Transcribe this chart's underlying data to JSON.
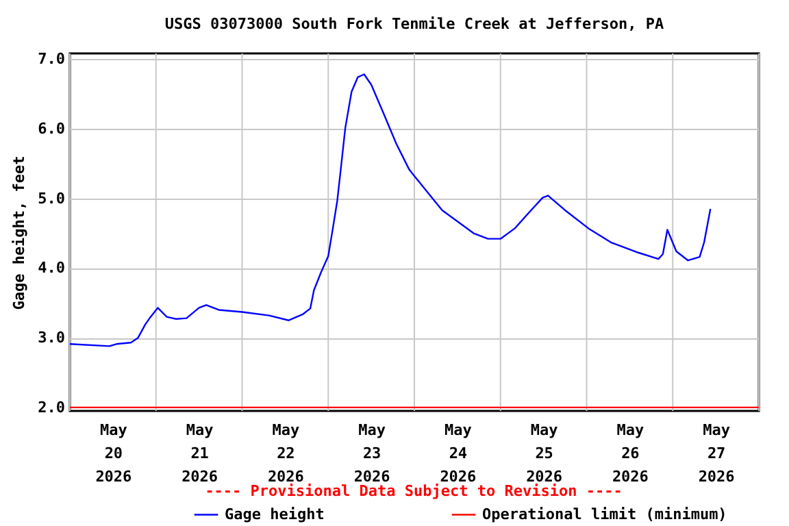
{
  "chart_data": {
    "type": "line",
    "title": "USGS 03073000 South Fork Tenmile Creek at Jefferson, PA",
    "ylabel": "Gage height, feet",
    "annotations": [
      "---- Provisional Data Subject to Revision ----"
    ],
    "x": [
      "2026-05-20T00:00",
      "2026-05-20T11:00",
      "2026-05-20T13:00",
      "2026-05-20T17:00",
      "2026-05-20T19:00",
      "2026-05-20T21:00",
      "2026-05-20T22:30",
      "2026-05-21T00:30",
      "2026-05-21T03:00",
      "2026-05-21T05:30",
      "2026-05-21T08:30",
      "2026-05-21T12:00",
      "2026-05-21T14:00",
      "2026-05-21T17:30",
      "2026-05-22T00:00",
      "2026-05-22T07:30",
      "2026-05-22T13:00",
      "2026-05-22T17:00",
      "2026-05-22T19:00",
      "2026-05-22T20:00",
      "2026-05-22T22:00",
      "2026-05-23T00:00",
      "2026-05-23T01:15",
      "2026-05-23T02:30",
      "2026-05-23T03:30",
      "2026-05-23T04:45",
      "2026-05-23T06:30",
      "2026-05-23T08:15",
      "2026-05-23T10:00",
      "2026-05-23T12:00",
      "2026-05-23T15:15",
      "2026-05-23T19:00",
      "2026-05-23T22:30",
      "2026-05-24T00:00",
      "2026-05-24T07:45",
      "2026-05-24T16:30",
      "2026-05-24T20:30",
      "2026-05-25T00:00",
      "2026-05-25T04:00",
      "2026-05-25T08:00",
      "2026-05-25T11:45",
      "2026-05-25T13:15",
      "2026-05-25T18:00",
      "2026-05-26T00:30",
      "2026-05-26T06:45",
      "2026-05-26T14:30",
      "2026-05-26T20:00",
      "2026-05-26T21:15",
      "2026-05-26T22:30",
      "2026-05-27T01:00",
      "2026-05-27T04:15",
      "2026-05-27T07:30",
      "2026-05-27T08:45",
      "2026-05-27T10:30"
    ],
    "series": [
      {
        "name": "Gage height",
        "color": "#0000ff",
        "values": [
          2.91,
          2.88,
          2.91,
          2.93,
          3.0,
          3.19,
          3.3,
          3.43,
          3.3,
          3.27,
          3.28,
          3.43,
          3.47,
          3.4,
          3.37,
          3.32,
          3.25,
          3.34,
          3.42,
          3.68,
          3.94,
          4.17,
          4.56,
          4.96,
          5.42,
          6.01,
          6.53,
          6.74,
          6.78,
          6.63,
          6.24,
          5.78,
          5.42,
          5.32,
          4.83,
          4.5,
          4.42,
          4.42,
          4.57,
          4.8,
          5.01,
          5.04,
          4.83,
          4.57,
          4.37,
          4.22,
          4.13,
          4.2,
          4.55,
          4.24,
          4.11,
          4.16,
          4.37,
          4.85
        ]
      }
    ],
    "ref_lines": [
      {
        "axis": "y",
        "value": 2.0,
        "label": "Operational limit (minimum)",
        "color": "#ff0000"
      }
    ],
    "xlim": [
      "2026-05-20T00:00",
      "2026-05-28T00:00"
    ],
    "xticks": [
      {
        "value": "2026-05-20T00:00",
        "label": null
      },
      {
        "value": "2026-05-20T12:00",
        "label": "May 20 2026"
      },
      {
        "value": "2026-05-21T00:00",
        "label": null
      },
      {
        "value": "2026-05-21T12:00",
        "label": "May 21 2026"
      },
      {
        "value": "2026-05-22T00:00",
        "label": null
      },
      {
        "value": "2026-05-22T12:00",
        "label": "May 22 2026"
      },
      {
        "value": "2026-05-23T00:00",
        "label": null
      },
      {
        "value": "2026-05-23T12:00",
        "label": "May 23 2026"
      },
      {
        "value": "2026-05-24T00:00",
        "label": null
      },
      {
        "value": "2026-05-24T12:00",
        "label": "May 24 2026"
      },
      {
        "value": "2026-05-25T00:00",
        "label": null
      },
      {
        "value": "2026-05-25T12:00",
        "label": "May 25 2026"
      },
      {
        "value": "2026-05-26T00:00",
        "label": null
      },
      {
        "value": "2026-05-26T12:00",
        "label": "May 26 2026"
      },
      {
        "value": "2026-05-27T00:00",
        "label": null
      },
      {
        "value": "2026-05-27T12:00",
        "label": "May 27 2026"
      },
      {
        "value": "2026-05-28T00:00",
        "label": null
      }
    ],
    "ylim": [
      1.95,
      7.08
    ],
    "yticks": [
      {
        "value": 2,
        "label": "2.0"
      },
      {
        "value": 3,
        "label": "3.0"
      },
      {
        "value": 4,
        "label": "4.0"
      },
      {
        "value": 5,
        "label": "5.0"
      },
      {
        "value": 6,
        "label": "6.0"
      },
      {
        "value": 7,
        "label": "7.0"
      }
    ],
    "grid": true,
    "legend": "bottom",
    "marker": "none",
    "line_style": "solid"
  }
}
